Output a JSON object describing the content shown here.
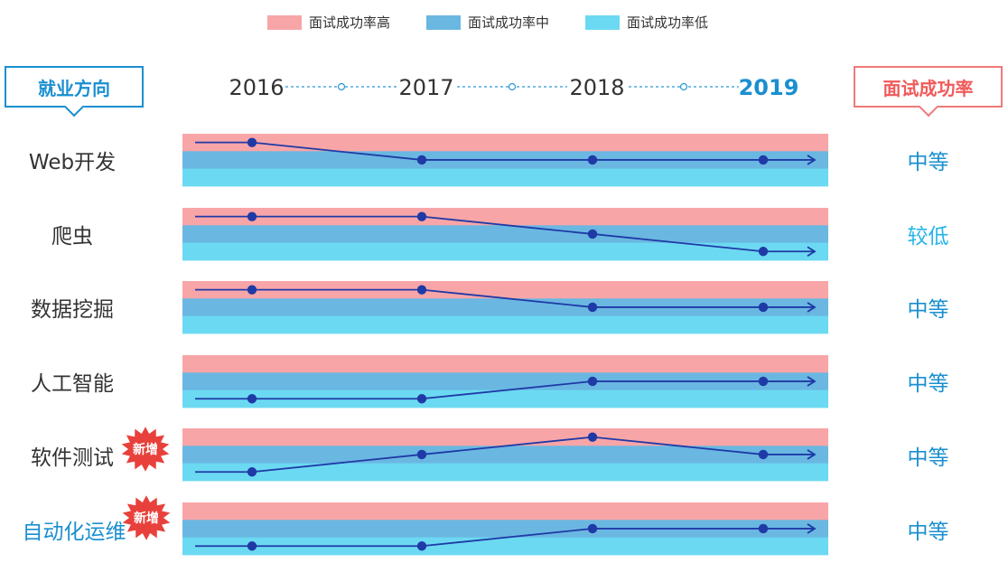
{
  "legend": [
    {
      "label": "面试成功率高",
      "color": "#f8a5a8"
    },
    {
      "label": "面试成功率中",
      "color": "#6ab7e2"
    },
    {
      "label": "面试成功率低",
      "color": "#6cd9f2"
    }
  ],
  "header": {
    "left_title": "就业方向",
    "right_title": "面试成功率"
  },
  "badge_text": "新增",
  "chart_data": {
    "type": "line",
    "x": [
      "2016",
      "2017",
      "2018",
      "2019"
    ],
    "highlight_year": "2019",
    "levels": [
      "面试成功率高",
      "面试成功率中",
      "面试成功率低"
    ],
    "rows": [
      {
        "name": "Web开发",
        "values": [
          "高",
          "中",
          "中",
          "中"
        ],
        "rate": "中等",
        "is_new": false
      },
      {
        "name": "爬虫",
        "values": [
          "高",
          "高",
          "中",
          "低"
        ],
        "rate": "较低",
        "is_new": false
      },
      {
        "name": "数据挖掘",
        "values": [
          "高",
          "高",
          "中",
          "中"
        ],
        "rate": "中等",
        "is_new": false
      },
      {
        "name": "人工智能",
        "values": [
          "低",
          "低",
          "中",
          "中"
        ],
        "rate": "中等",
        "is_new": false
      },
      {
        "name": "软件测试",
        "values": [
          "低",
          "中",
          "高",
          "中"
        ],
        "rate": "中等",
        "is_new": true
      },
      {
        "name": "自动化运维",
        "values": [
          "低",
          "低",
          "中",
          "中"
        ],
        "rate": "中等",
        "is_new": true
      }
    ]
  }
}
